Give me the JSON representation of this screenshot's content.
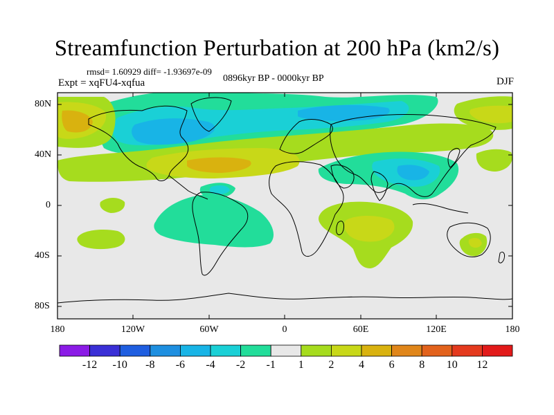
{
  "title": "Streamfunction Perturbation at 200 hPa (km2/s)",
  "stats": "rmsd= 1.60929 diff= -1.93697e-09",
  "experiment": "Expt = xqFU4-xqfua",
  "period": "0896kyr BP - 0000kyr BP",
  "season": "DJF",
  "axes": {
    "lat_labels": [
      "80N",
      "40N",
      "0",
      "40S",
      "80S"
    ],
    "lon_labels": [
      "180",
      "120W",
      "60W",
      "0",
      "60E",
      "120E",
      "180"
    ]
  },
  "colorbar": {
    "labels": [
      "-12",
      "-10",
      "-8",
      "-6",
      "-4",
      "-2",
      "-1",
      "1",
      "2",
      "4",
      "6",
      "8",
      "10",
      "12"
    ],
    "colors": [
      "#8b1be6",
      "#3a2fd6",
      "#1f5ee0",
      "#1e8fe0",
      "#18b4e6",
      "#1ad0d6",
      "#22dd9a",
      "#e8e8e8",
      "#a6dc1e",
      "#c8d818",
      "#d9b20f",
      "#e0861a",
      "#e2621c",
      "#e43a1e",
      "#e21a1a"
    ]
  },
  "palette": {
    "ocean": "#e8e8e8",
    "pos1": "#a6dc1e",
    "pos2": "#c8d818",
    "pos3": "#d9b20f",
    "neg1": "#22dd9a",
    "neg2": "#1ad0d6",
    "neg3": "#18b4e6",
    "coast": "#000000"
  }
}
